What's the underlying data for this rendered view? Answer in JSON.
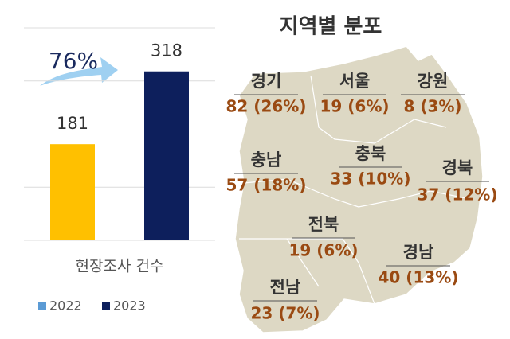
{
  "chart_data": [
    {
      "type": "bar",
      "categories": [
        "현장조사 건수"
      ],
      "series": [
        {
          "name": "2022",
          "color": "#ffc000",
          "values": [
            181
          ]
        },
        {
          "name": "2023",
          "color": "#0d1f5c",
          "values": [
            318
          ]
        }
      ],
      "ylim": [
        0,
        400
      ],
      "yticks": [
        0,
        100,
        200,
        300,
        400
      ],
      "grid": true,
      "annotation": "76%"
    },
    {
      "type": "map",
      "title": "지역별 분포",
      "categories": [
        "경기",
        "서울",
        "강원",
        "충남",
        "충북",
        "경북",
        "전북",
        "경남",
        "전남"
      ],
      "values": [
        82,
        19,
        8,
        57,
        33,
        37,
        19,
        40,
        23
      ],
      "value_labels": [
        "82 (26%)",
        "19 (6%)",
        "8 (3%)",
        "57 (18%)",
        "33 (10%)",
        "37 (12%)",
        "19 (6%)",
        "40 (13%)",
        "23 (7%)"
      ],
      "color": "#9a4a12"
    }
  ]
}
